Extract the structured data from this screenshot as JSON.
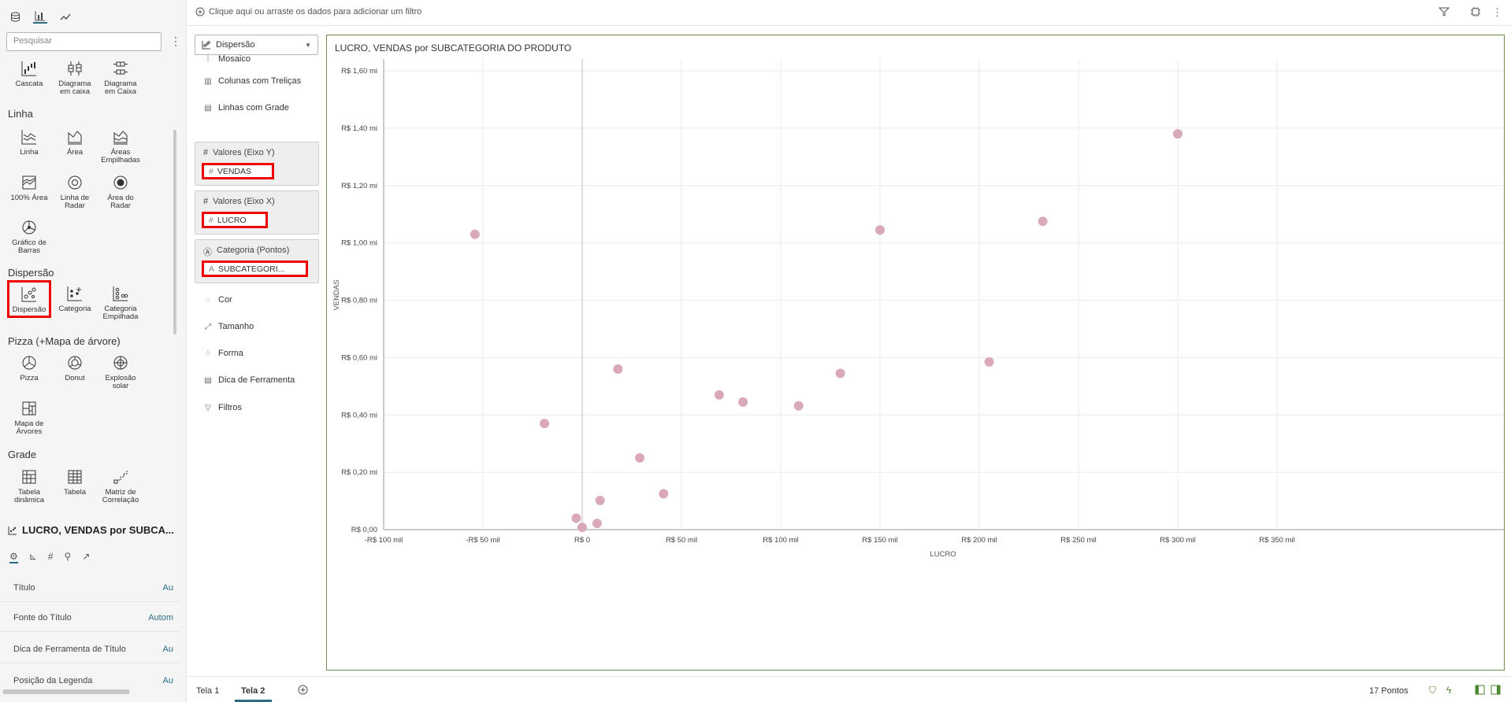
{
  "palette": {
    "search_placeholder": "Pesquisar",
    "sections": {
      "linha": "Linha",
      "dispersao": "Dispersão",
      "pizza": "Pizza (+Mapa de árvore)",
      "grade": "Grade"
    },
    "items": {
      "cascata": "Cascata",
      "diagrama_caixa1": "Diagrama\nem caixa",
      "diagrama_caixa2": "Diagrama\nem Caixa",
      "linha": "Linha",
      "area": "Área",
      "areas_empilhadas": "Áreas\nEmpilhadas",
      "area100": "100% Área",
      "linha_radar": "Linha de\nRadar",
      "area_radar": "Área do\nRadar",
      "grafico_barras": "Gráfico de\nBarras",
      "dispersao": "Dispersão",
      "categoria": "Categoria",
      "categoria_empilhada": "Categoria\nEmpilhada",
      "pizza": "Pizza",
      "donut": "Donut",
      "explosao_solar": "Explosão\nsolar",
      "mapa_arvores": "Mapa de\nÁrvores",
      "tabela_dinamica": "Tabela\ndinâmica",
      "tabela": "Tabela",
      "matriz_correlacao": "Matriz de\nCorrelação"
    }
  },
  "properties": {
    "title": "LUCRO, VENDAS por SUBCA...",
    "rows": [
      {
        "label": "Título",
        "value": "Au"
      },
      {
        "label": "Fonte do Título",
        "value": "Autom"
      },
      {
        "label": "Dica de Ferramenta de Título",
        "value": "Au"
      },
      {
        "label": "Posição da Legenda",
        "value": "Au"
      }
    ]
  },
  "filterbar": {
    "hint": "Clique aqui ou arraste os dados para adicionar um filtro"
  },
  "grammar": {
    "viz_type": "Dispersão",
    "items": {
      "mosaico": "Mosaico",
      "colunas": "Colunas com Treliças",
      "linhas": "Linhas com Grade",
      "cor": "Cor",
      "tamanho": "Tamanho",
      "forma": "Forma",
      "dica": "Dica de Ferramenta",
      "filtros": "Filtros"
    },
    "y_label": "Valores (Eixo Y)",
    "y_value": "VENDAS",
    "x_label": "Valores (Eixo X)",
    "x_value": "LUCRO",
    "cat_label": "Categoria (Pontos)",
    "cat_value": "SUBCATEGORI..."
  },
  "tabs": {
    "tela1": "Tela 1",
    "tela2": "Tela 2",
    "points": "17 Pontos"
  },
  "chart_data": {
    "type": "scatter",
    "title": "LUCRO, VENDAS por SUBCATEGORIA DO PRODUTO",
    "xlabel": "LUCRO",
    "ylabel": "VENDAS",
    "xlim": [
      -100000,
      350000
    ],
    "ylim": [
      0,
      1600000
    ],
    "x_ticks": [
      -100000,
      -50000,
      0,
      50000,
      100000,
      150000,
      200000,
      250000,
      300000,
      350000
    ],
    "x_tick_labels": [
      "-R$ 100 mil",
      "-R$ 50 mil",
      "R$ 0",
      "R$ 50 mil",
      "R$ 100 mil",
      "R$ 150 mil",
      "R$ 200 mil",
      "R$ 250 mil",
      "R$ 300 mil",
      "R$ 350 mil"
    ],
    "y_ticks": [
      0,
      200000,
      400000,
      600000,
      800000,
      1000000,
      1200000,
      1400000,
      1600000
    ],
    "y_tick_labels": [
      "R$ 0,00",
      "R$ 0,20 mi",
      "R$ 0,40 mi",
      "R$ 0,60 mi",
      "R$ 0,80 mi",
      "R$ 1,00 mi",
      "R$ 1,20 mi",
      "R$ 1,40 mi",
      "R$ 1,60 mi"
    ],
    "grid": true,
    "color": "#d9a9b8",
    "points": [
      {
        "x": -54000,
        "y": 1030000
      },
      {
        "x": -19000,
        "y": 370000
      },
      {
        "x": -3000,
        "y": 40000
      },
      {
        "x": 0,
        "y": 8000
      },
      {
        "x": 7500,
        "y": 22000
      },
      {
        "x": 9000,
        "y": 102000
      },
      {
        "x": 18000,
        "y": 560000
      },
      {
        "x": 29000,
        "y": 250000
      },
      {
        "x": 41000,
        "y": 125000
      },
      {
        "x": 69000,
        "y": 470000
      },
      {
        "x": 81000,
        "y": 445000
      },
      {
        "x": 109000,
        "y": 432000
      },
      {
        "x": 130000,
        "y": 545000
      },
      {
        "x": 150000,
        "y": 1045000
      },
      {
        "x": 205000,
        "y": 585000
      },
      {
        "x": 232000,
        "y": 1075000
      },
      {
        "x": 300000,
        "y": 1380000
      }
    ]
  }
}
